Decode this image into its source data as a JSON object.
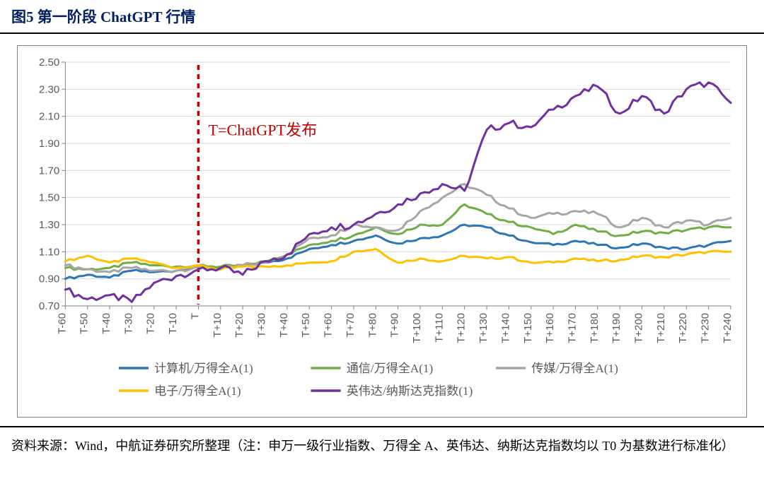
{
  "title": "图5  第一阶段 ChatGPT 行情",
  "annotation": "T=ChatGPT发布",
  "annotation_color": "#c00000",
  "annotation_fontsize": 22,
  "footnote": "资料来源：Wind，中航证券研究所整理（注：申万一级行业指数、万得全 A、英伟达、纳斯达克指数均以 T0 为基数进行标准化）",
  "chart": {
    "type": "line",
    "background_color": "#ffffff",
    "grid_color": "#d9d9d9",
    "axis_color": "#808080",
    "axis_fontsize": 15,
    "line_width": 3,
    "legend_fontsize": 17,
    "ylim": [
      0.7,
      2.5
    ],
    "ytick_step": 0.2,
    "x_labels": [
      "T-60",
      "T-50",
      "T-40",
      "T-30",
      "T-20",
      "T-10",
      "T",
      "T+10",
      "T+20",
      "T+30",
      "T+40",
      "T+50",
      "T+60",
      "T+70",
      "T+80",
      "T+90",
      "T+100",
      "T+110",
      "T+120",
      "T+130",
      "T+140",
      "T+150",
      "T+160",
      "T+170",
      "T+180",
      "T+190",
      "T+200",
      "T+210",
      "T+220",
      "T+230",
      "T+240"
    ],
    "event_x_index": 6,
    "event_line_color": "#c00000",
    "event_line_dash": "7,6",
    "event_line_width": 3.5,
    "series": [
      {
        "name": "计算机/万得全A(1)",
        "color": "#2e75b6",
        "values": [
          0.9,
          0.93,
          0.91,
          0.96,
          0.95,
          0.96,
          0.99,
          0.98,
          1.0,
          1.02,
          1.05,
          1.12,
          1.15,
          1.18,
          1.22,
          1.16,
          1.2,
          1.22,
          1.3,
          1.28,
          1.22,
          1.17,
          1.15,
          1.18,
          1.15,
          1.13,
          1.16,
          1.13,
          1.12,
          1.15,
          1.18
        ]
      },
      {
        "name": "通信/万得全A(1)",
        "color": "#70ad47",
        "values": [
          0.98,
          0.97,
          0.98,
          1.02,
          1.0,
          0.99,
          1.0,
          0.99,
          1.0,
          1.03,
          1.08,
          1.15,
          1.18,
          1.22,
          1.28,
          1.23,
          1.3,
          1.3,
          1.45,
          1.38,
          1.32,
          1.28,
          1.23,
          1.3,
          1.25,
          1.22,
          1.25,
          1.24,
          1.26,
          1.28,
          1.28
        ]
      },
      {
        "name": "传媒/万得全A(1)",
        "color": "#a6a6a6",
        "values": [
          1.0,
          0.97,
          0.95,
          0.98,
          0.96,
          0.96,
          0.99,
          0.97,
          1.0,
          1.02,
          1.08,
          1.2,
          1.22,
          1.3,
          1.28,
          1.26,
          1.4,
          1.5,
          1.6,
          1.52,
          1.42,
          1.35,
          1.38,
          1.4,
          1.38,
          1.28,
          1.35,
          1.28,
          1.33,
          1.3,
          1.35
        ]
      },
      {
        "name": "电子/万得全A(1)",
        "color": "#ffc000",
        "values": [
          1.03,
          1.07,
          1.02,
          1.05,
          1.02,
          0.98,
          1.0,
          0.97,
          0.99,
          0.99,
          1.0,
          1.02,
          1.03,
          1.1,
          1.12,
          1.02,
          1.05,
          1.03,
          1.07,
          1.05,
          1.06,
          1.02,
          1.02,
          1.05,
          1.03,
          1.04,
          1.07,
          1.06,
          1.08,
          1.1,
          1.1
        ]
      },
      {
        "name": "英伟达/纳斯达克指数(1)",
        "color": "#7030a0",
        "values": [
          0.82,
          0.75,
          0.78,
          0.73,
          0.87,
          0.92,
          0.97,
          0.98,
          0.93,
          1.03,
          1.08,
          1.23,
          1.28,
          1.3,
          1.38,
          1.45,
          1.53,
          1.6,
          1.55,
          2.0,
          2.05,
          2.02,
          2.15,
          2.25,
          2.32,
          2.12,
          2.25,
          2.12,
          2.3,
          2.35,
          2.2
        ]
      }
    ]
  }
}
